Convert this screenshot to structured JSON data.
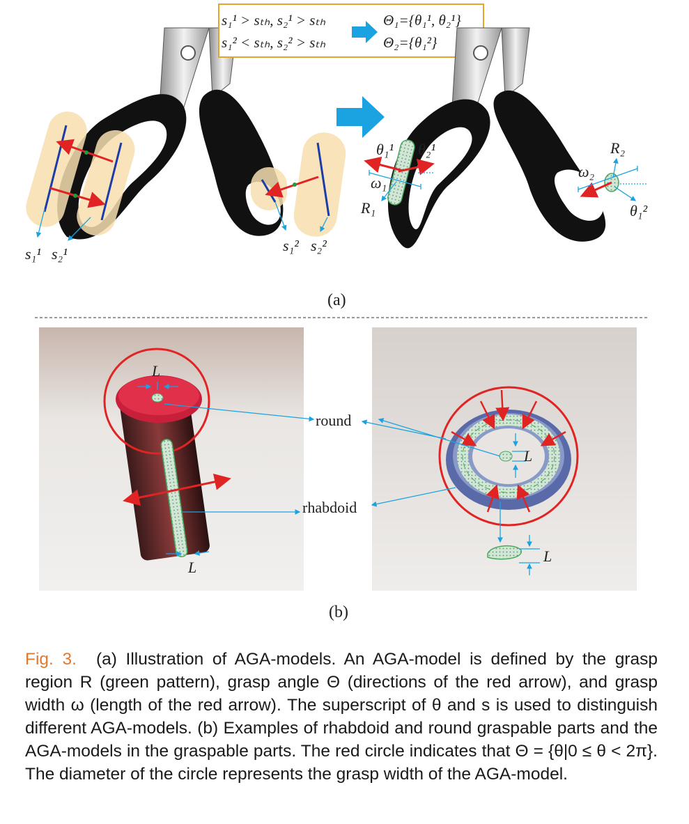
{
  "figure": {
    "panel_a_label": "(a)",
    "panel_b_label": "(b)",
    "condition_box": {
      "line1_left": "s₁¹ > sₜₕ, s₂¹ > sₜₕ",
      "line2_left": "s₁² < sₜₕ, s₂² > sₜₕ",
      "line1_right": "Θ₁={θ₁¹, θ₂¹}",
      "line2_right": "Θ₂={θ₁²}"
    },
    "labels_a": {
      "s1_1": "s₁¹",
      "s2_1": "s₂¹",
      "s1_2": "s₁²",
      "s2_2": "s₂²",
      "theta1_1": "θ₁¹",
      "theta2_1": "θ₂¹",
      "omega1": "ω₁",
      "R1": "R₁",
      "R2": "R₂",
      "omega2": "ω₂",
      "theta1_2": "θ₁²"
    },
    "labels_b": {
      "L_top": "L",
      "L_bottom": "L",
      "L_ring": "L",
      "L_piece": "L",
      "round": "round",
      "rhabdoid": "rhabdoid"
    },
    "colors": {
      "arrow_red": "#e02424",
      "arrow_blue": "#1aa3e0",
      "region_tan": "#f7dfb0",
      "region_green": "#7dc08a",
      "box_border": "#e5a526",
      "figno": "#e07a2e"
    }
  },
  "caption": {
    "fig_number": "Fig. 3.",
    "text": "(a) Illustration of AGA-models. An AGA-model is defined by the grasp region R (green pattern), grasp angle Θ (directions of the red arrow), and grasp width ω (length of the red arrow). The superscript of θ and s is used to distinguish different AGA-models. (b) Examples of rhabdoid and round graspable parts and the AGA-models in the graspable parts. The red circle indicates that Θ = {θ|0 ≤ θ < 2π}. The diameter of the circle represents the grasp width of the AGA-model."
  }
}
